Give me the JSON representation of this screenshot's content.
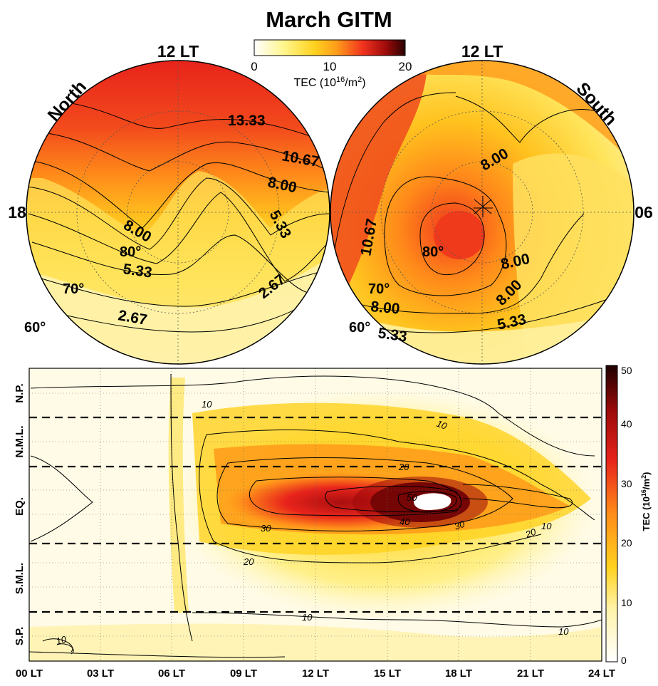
{
  "title": "March GITM",
  "polar_colorbar": {
    "ticks": [
      "0",
      "10",
      "20"
    ],
    "label_prefix": "TEC (10",
    "label_sup1": "16",
    "label_mid": "/m",
    "label_sup2": "2",
    "label_suffix": ")"
  },
  "north_panel": {
    "name": "North",
    "top_label": "12 LT",
    "left_label": "18",
    "lat_labels": [
      "80°",
      "70°",
      "60°"
    ],
    "contour_labels": [
      "13.33",
      "10.67",
      "8.00",
      "8.00",
      "5.33",
      "5.33",
      "2.67",
      "2.67"
    ]
  },
  "south_panel": {
    "name": "South",
    "top_label": "12 LT",
    "right_label": "06",
    "lat_labels": [
      "80°",
      "70°",
      "60°"
    ],
    "contour_labels": [
      "8.00",
      "10.67",
      "8.00",
      "8.00",
      "8.00",
      "5.33",
      "5.33"
    ]
  },
  "chart_data": {
    "type": "heatmap",
    "title": "March GITM",
    "x_tick_labels": [
      "00 LT",
      "03 LT",
      "06 LT",
      "09 LT",
      "12 LT",
      "15 LT",
      "18 LT",
      "21 LT",
      "24 LT"
    ],
    "x_range_hours": [
      0,
      24
    ],
    "y_region_labels": [
      "N.P.",
      "N.M.L.",
      "EQ.",
      "S.M.L.",
      "S.P."
    ],
    "region_boundaries_dashed": 4,
    "colorbar": {
      "ticks": [
        "50",
        "40",
        "30",
        "20",
        "10",
        "0"
      ],
      "range": [
        0,
        50
      ],
      "label_prefix": "TEC (10",
      "label_sup1": "16",
      "label_mid": "/m",
      "label_sup2": "2",
      "label_suffix": ")"
    },
    "contour_levels": [
      10,
      20,
      30,
      40,
      50
    ],
    "contour_labels": [
      "10",
      "10",
      "20",
      "30",
      "30",
      "40",
      "50",
      "20",
      "20",
      "10",
      "10",
      "10",
      "10"
    ],
    "peak": {
      "local_time_hour": 16.5,
      "region": "EQ.",
      "tec_min": 50
    },
    "grid": true
  },
  "colors": {
    "low": "#fffbe6",
    "mid": "#ffd21e",
    "orange": "#ff7f1a",
    "red": "#e8231b",
    "dark": "#3a0000"
  }
}
